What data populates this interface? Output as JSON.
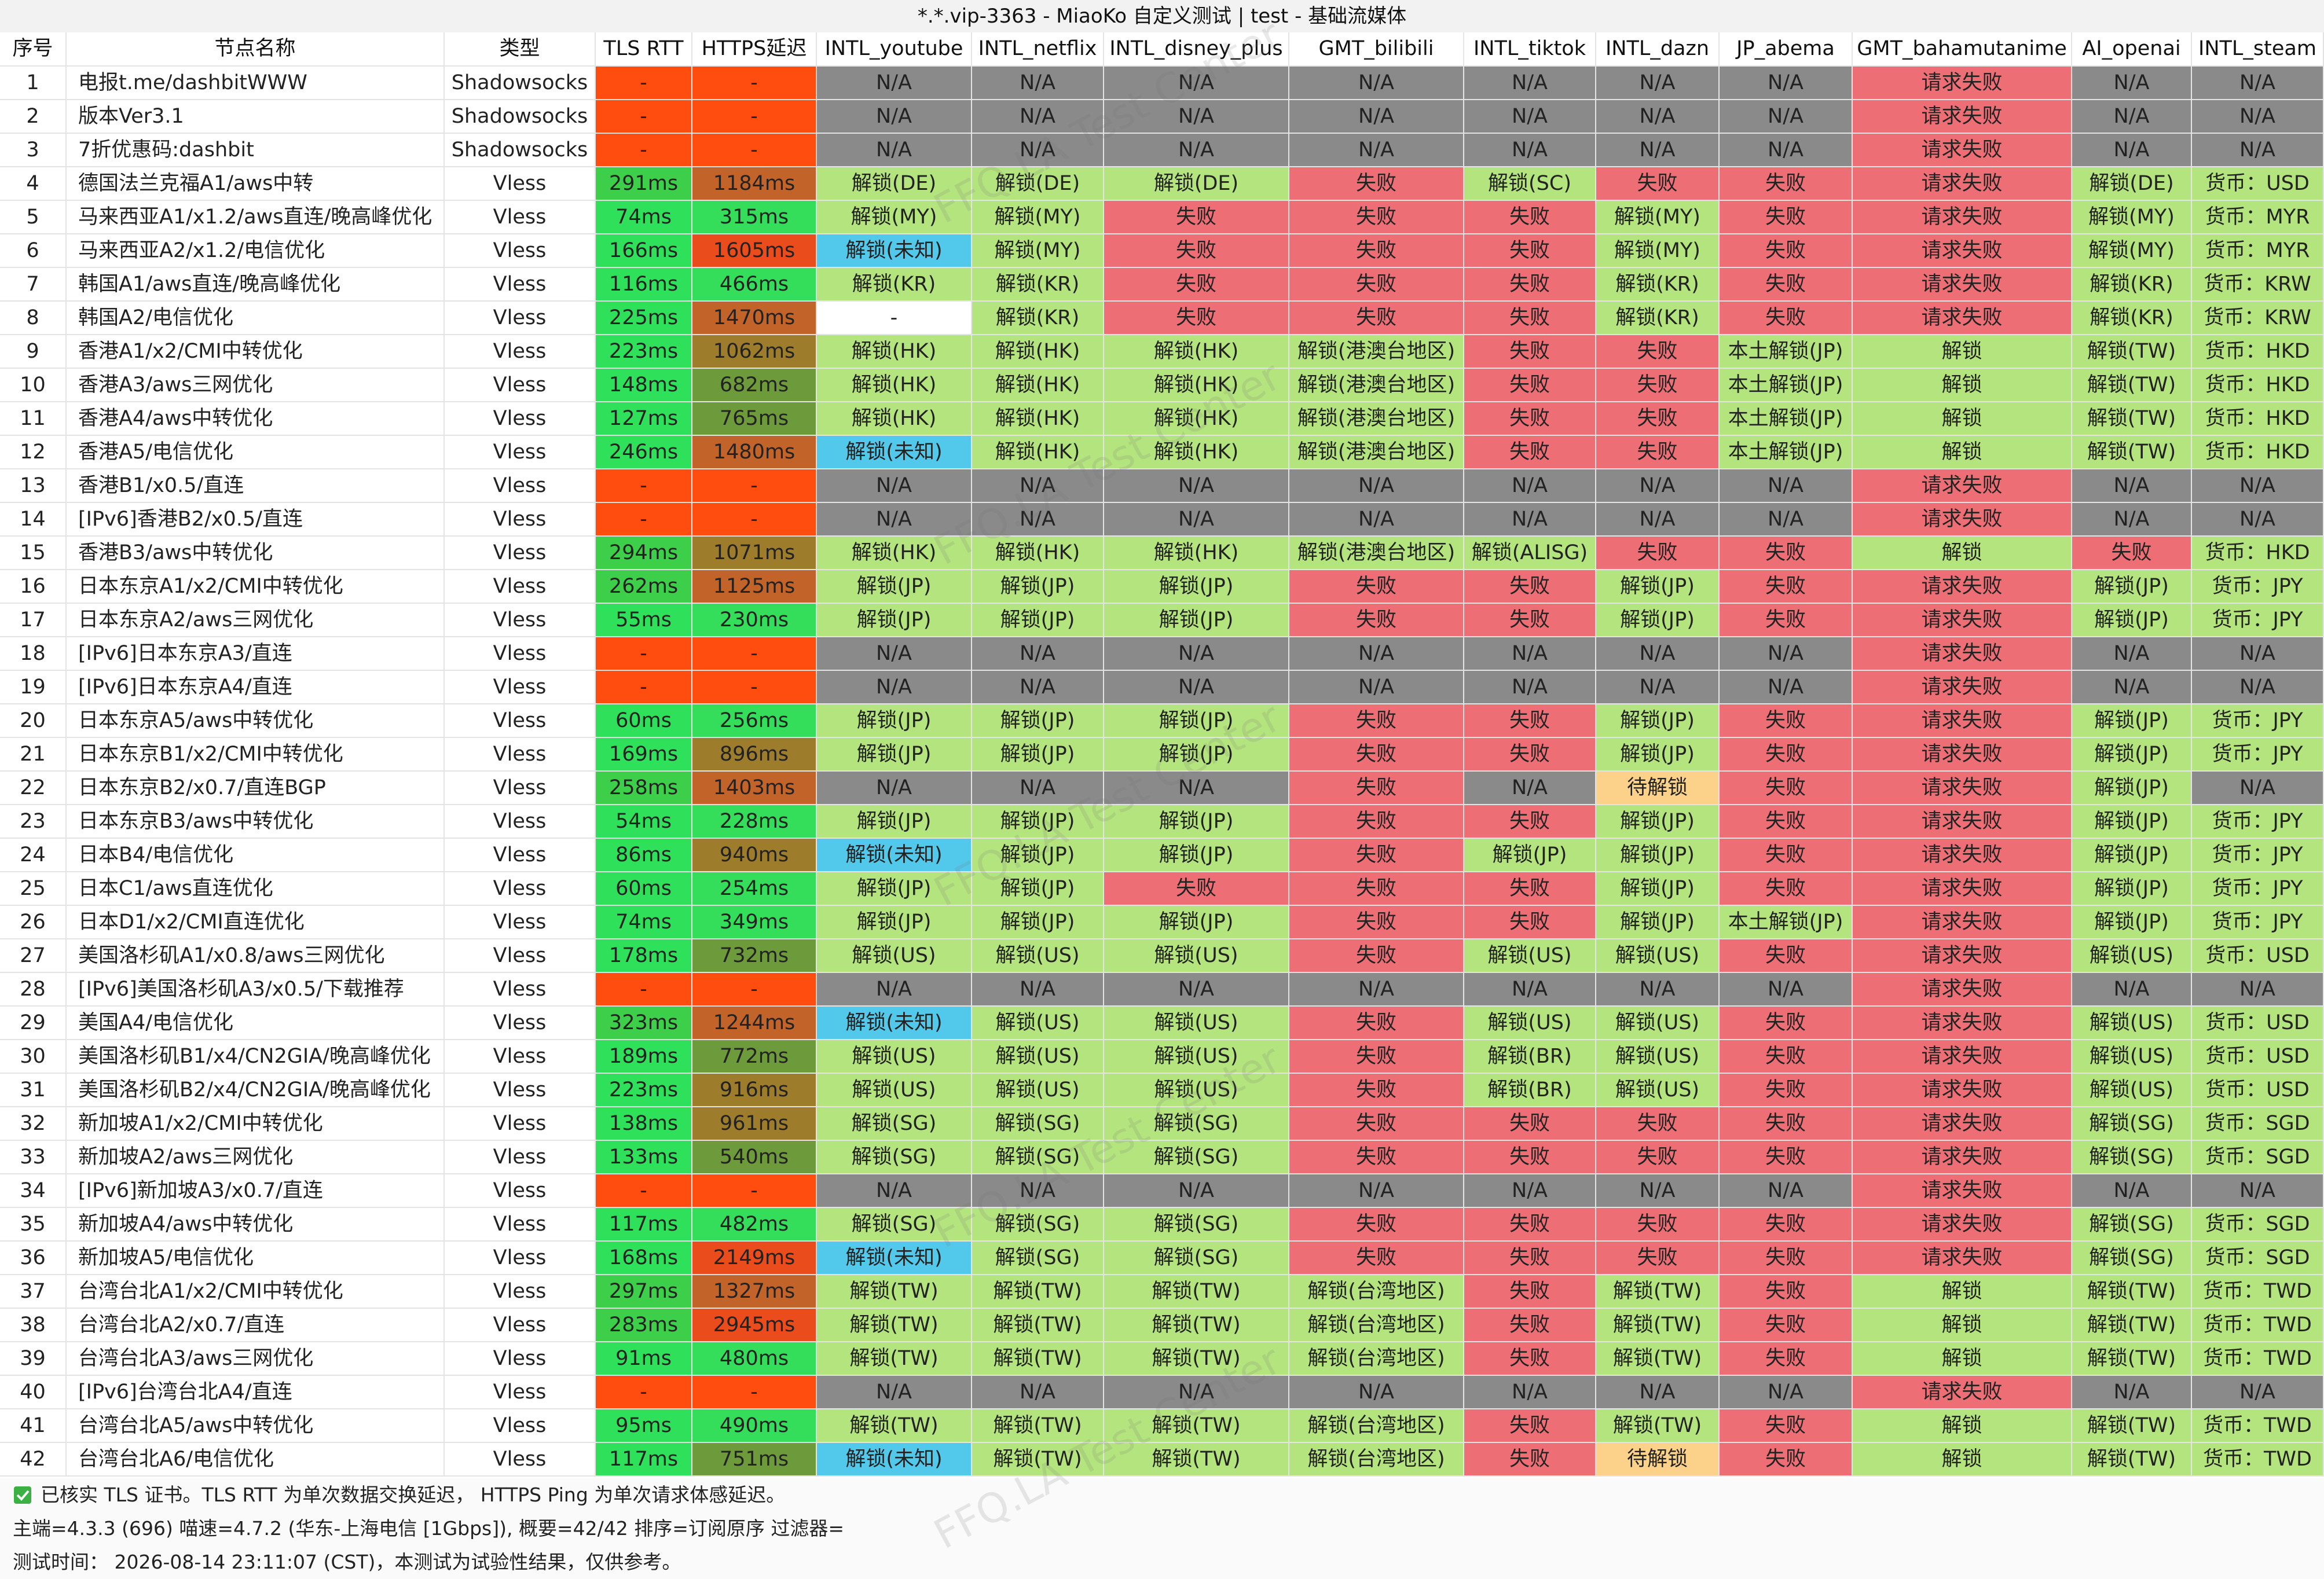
{
  "title": "*.*.vip-3363 - MiaoKo 自定义测试 | test - 基础流媒体",
  "watermark": "FFQ.LA Test Center",
  "table": {
    "header": [
      "序号",
      "节点名称",
      "类型",
      "TLS RTT",
      "HTTPS延迟",
      "INTL_youtube",
      "INTL_netflix",
      "INTL_disney_plus",
      "GMT_bilibili",
      "INTL_tiktok",
      "INTL_dazn",
      "JP_abema",
      "GMT_bahamutanime",
      "AI_openai",
      "INTL_steam"
    ],
    "rows": [
      [
        "1",
        "电报t.me/dashbitWWW",
        "Shadowsocks",
        "-",
        "-",
        "N/A",
        "N/A",
        "N/A",
        "N/A",
        "N/A",
        "N/A",
        "N/A",
        "请求失败",
        "N/A",
        "N/A"
      ],
      [
        "2",
        "版本Ver3.1",
        "Shadowsocks",
        "-",
        "-",
        "N/A",
        "N/A",
        "N/A",
        "N/A",
        "N/A",
        "N/A",
        "N/A",
        "请求失败",
        "N/A",
        "N/A"
      ],
      [
        "3",
        "7折优惠码:dashbit",
        "Shadowsocks",
        "-",
        "-",
        "N/A",
        "N/A",
        "N/A",
        "N/A",
        "N/A",
        "N/A",
        "N/A",
        "请求失败",
        "N/A",
        "N/A"
      ],
      [
        "4",
        "德国法兰克福A1/aws中转",
        "Vless",
        "291ms",
        "1184ms",
        "解锁(DE)",
        "解锁(DE)",
        "解锁(DE)",
        "失败",
        "解锁(SC)",
        "失败",
        "失败",
        "请求失败",
        "解锁(DE)",
        "货币：USD"
      ],
      [
        "5",
        "马来西亚A1/x1.2/aws直连/晚高峰优化",
        "Vless",
        "74ms",
        "315ms",
        "解锁(MY)",
        "解锁(MY)",
        "失败",
        "失败",
        "失败",
        "解锁(MY)",
        "失败",
        "请求失败",
        "解锁(MY)",
        "货币：MYR"
      ],
      [
        "6",
        "马来西亚A2/x1.2/电信优化",
        "Vless",
        "166ms",
        "1605ms",
        "解锁(未知)",
        "解锁(MY)",
        "失败",
        "失败",
        "失败",
        "解锁(MY)",
        "失败",
        "请求失败",
        "解锁(MY)",
        "货币：MYR"
      ],
      [
        "7",
        "韩国A1/aws直连/晚高峰优化",
        "Vless",
        "116ms",
        "466ms",
        "解锁(KR)",
        "解锁(KR)",
        "失败",
        "失败",
        "失败",
        "解锁(KR)",
        "失败",
        "请求失败",
        "解锁(KR)",
        "货币：KRW"
      ],
      [
        "8",
        "韩国A2/电信优化",
        "Vless",
        "225ms",
        "1470ms",
        "-",
        "解锁(KR)",
        "失败",
        "失败",
        "失败",
        "解锁(KR)",
        "失败",
        "请求失败",
        "解锁(KR)",
        "货币：KRW"
      ],
      [
        "9",
        "香港A1/x2/CMI中转优化",
        "Vless",
        "223ms",
        "1062ms",
        "解锁(HK)",
        "解锁(HK)",
        "解锁(HK)",
        "解锁(港澳台地区)",
        "失败",
        "失败",
        "本土解锁(JP)",
        "解锁",
        "解锁(TW)",
        "货币：HKD"
      ],
      [
        "10",
        "香港A3/aws三网优化",
        "Vless",
        "148ms",
        "682ms",
        "解锁(HK)",
        "解锁(HK)",
        "解锁(HK)",
        "解锁(港澳台地区)",
        "失败",
        "失败",
        "本土解锁(JP)",
        "解锁",
        "解锁(TW)",
        "货币：HKD"
      ],
      [
        "11",
        "香港A4/aws中转优化",
        "Vless",
        "127ms",
        "765ms",
        "解锁(HK)",
        "解锁(HK)",
        "解锁(HK)",
        "解锁(港澳台地区)",
        "失败",
        "失败",
        "本土解锁(JP)",
        "解锁",
        "解锁(TW)",
        "货币：HKD"
      ],
      [
        "12",
        "香港A5/电信优化",
        "Vless",
        "246ms",
        "1480ms",
        "解锁(未知)",
        "解锁(HK)",
        "解锁(HK)",
        "解锁(港澳台地区)",
        "失败",
        "失败",
        "本土解锁(JP)",
        "解锁",
        "解锁(TW)",
        "货币：HKD"
      ],
      [
        "13",
        "香港B1/x0.5/直连",
        "Vless",
        "-",
        "-",
        "N/A",
        "N/A",
        "N/A",
        "N/A",
        "N/A",
        "N/A",
        "N/A",
        "请求失败",
        "N/A",
        "N/A"
      ],
      [
        "14",
        "[IPv6]香港B2/x0.5/直连",
        "Vless",
        "-",
        "-",
        "N/A",
        "N/A",
        "N/A",
        "N/A",
        "N/A",
        "N/A",
        "N/A",
        "请求失败",
        "N/A",
        "N/A"
      ],
      [
        "15",
        "香港B3/aws中转优化",
        "Vless",
        "294ms",
        "1071ms",
        "解锁(HK)",
        "解锁(HK)",
        "解锁(HK)",
        "解锁(港澳台地区)",
        "解锁(ALISG)",
        "失败",
        "失败",
        "解锁",
        "失败",
        "货币：HKD"
      ],
      [
        "16",
        "日本东京A1/x2/CMI中转优化",
        "Vless",
        "262ms",
        "1125ms",
        "解锁(JP)",
        "解锁(JP)",
        "解锁(JP)",
        "失败",
        "失败",
        "解锁(JP)",
        "失败",
        "请求失败",
        "解锁(JP)",
        "货币：JPY"
      ],
      [
        "17",
        "日本东京A2/aws三网优化",
        "Vless",
        "55ms",
        "230ms",
        "解锁(JP)",
        "解锁(JP)",
        "解锁(JP)",
        "失败",
        "失败",
        "解锁(JP)",
        "失败",
        "请求失败",
        "解锁(JP)",
        "货币：JPY"
      ],
      [
        "18",
        "[IPv6]日本东京A3/直连",
        "Vless",
        "-",
        "-",
        "N/A",
        "N/A",
        "N/A",
        "N/A",
        "N/A",
        "N/A",
        "N/A",
        "请求失败",
        "N/A",
        "N/A"
      ],
      [
        "19",
        "[IPv6]日本东京A4/直连",
        "Vless",
        "-",
        "-",
        "N/A",
        "N/A",
        "N/A",
        "N/A",
        "N/A",
        "N/A",
        "N/A",
        "请求失败",
        "N/A",
        "N/A"
      ],
      [
        "20",
        "日本东京A5/aws中转优化",
        "Vless",
        "60ms",
        "256ms",
        "解锁(JP)",
        "解锁(JP)",
        "解锁(JP)",
        "失败",
        "失败",
        "解锁(JP)",
        "失败",
        "请求失败",
        "解锁(JP)",
        "货币：JPY"
      ],
      [
        "21",
        "日本东京B1/x2/CMI中转优化",
        "Vless",
        "169ms",
        "896ms",
        "解锁(JP)",
        "解锁(JP)",
        "解锁(JP)",
        "失败",
        "失败",
        "解锁(JP)",
        "失败",
        "请求失败",
        "解锁(JP)",
        "货币：JPY"
      ],
      [
        "22",
        "日本东京B2/x0.7/直连BGP",
        "Vless",
        "258ms",
        "1403ms",
        "N/A",
        "N/A",
        "N/A",
        "失败",
        "N/A",
        "待解锁",
        "失败",
        "请求失败",
        "解锁(JP)",
        "N/A"
      ],
      [
        "23",
        "日本东京B3/aws中转优化",
        "Vless",
        "54ms",
        "228ms",
        "解锁(JP)",
        "解锁(JP)",
        "解锁(JP)",
        "失败",
        "失败",
        "解锁(JP)",
        "失败",
        "请求失败",
        "解锁(JP)",
        "货币：JPY"
      ],
      [
        "24",
        "日本B4/电信优化",
        "Vless",
        "86ms",
        "940ms",
        "解锁(未知)",
        "解锁(JP)",
        "解锁(JP)",
        "失败",
        "解锁(JP)",
        "解锁(JP)",
        "失败",
        "请求失败",
        "解锁(JP)",
        "货币：JPY"
      ],
      [
        "25",
        "日本C1/aws直连优化",
        "Vless",
        "60ms",
        "254ms",
        "解锁(JP)",
        "解锁(JP)",
        "失败",
        "失败",
        "失败",
        "解锁(JP)",
        "失败",
        "请求失败",
        "解锁(JP)",
        "货币：JPY"
      ],
      [
        "26",
        "日本D1/x2/CMI直连优化",
        "Vless",
        "74ms",
        "349ms",
        "解锁(JP)",
        "解锁(JP)",
        "解锁(JP)",
        "失败",
        "失败",
        "解锁(JP)",
        "本土解锁(JP)",
        "请求失败",
        "解锁(JP)",
        "货币：JPY"
      ],
      [
        "27",
        "美国洛杉矶A1/x0.8/aws三网优化",
        "Vless",
        "178ms",
        "732ms",
        "解锁(US)",
        "解锁(US)",
        "解锁(US)",
        "失败",
        "解锁(US)",
        "解锁(US)",
        "失败",
        "请求失败",
        "解锁(US)",
        "货币：USD"
      ],
      [
        "28",
        "[IPv6]美国洛杉矶A3/x0.5/下载推荐",
        "Vless",
        "-",
        "-",
        "N/A",
        "N/A",
        "N/A",
        "N/A",
        "N/A",
        "N/A",
        "N/A",
        "请求失败",
        "N/A",
        "N/A"
      ],
      [
        "29",
        "美国A4/电信优化",
        "Vless",
        "323ms",
        "1244ms",
        "解锁(未知)",
        "解锁(US)",
        "解锁(US)",
        "失败",
        "解锁(US)",
        "解锁(US)",
        "失败",
        "请求失败",
        "解锁(US)",
        "货币：USD"
      ],
      [
        "30",
        "美国洛杉矶B1/x4/CN2GIA/晚高峰优化",
        "Vless",
        "189ms",
        "772ms",
        "解锁(US)",
        "解锁(US)",
        "解锁(US)",
        "失败",
        "解锁(BR)",
        "解锁(US)",
        "失败",
        "请求失败",
        "解锁(US)",
        "货币：USD"
      ],
      [
        "31",
        "美国洛杉矶B2/x4/CN2GIA/晚高峰优化",
        "Vless",
        "223ms",
        "916ms",
        "解锁(US)",
        "解锁(US)",
        "解锁(US)",
        "失败",
        "解锁(BR)",
        "解锁(US)",
        "失败",
        "请求失败",
        "解锁(US)",
        "货币：USD"
      ],
      [
        "32",
        "新加坡A1/x2/CMI中转优化",
        "Vless",
        "138ms",
        "961ms",
        "解锁(SG)",
        "解锁(SG)",
        "解锁(SG)",
        "失败",
        "失败",
        "失败",
        "失败",
        "请求失败",
        "解锁(SG)",
        "货币：SGD"
      ],
      [
        "33",
        "新加坡A2/aws三网优化",
        "Vless",
        "133ms",
        "540ms",
        "解锁(SG)",
        "解锁(SG)",
        "解锁(SG)",
        "失败",
        "失败",
        "失败",
        "失败",
        "请求失败",
        "解锁(SG)",
        "货币：SGD"
      ],
      [
        "34",
        "[IPv6]新加坡A3/x0.7/直连",
        "Vless",
        "-",
        "-",
        "N/A",
        "N/A",
        "N/A",
        "N/A",
        "N/A",
        "N/A",
        "N/A",
        "请求失败",
        "N/A",
        "N/A"
      ],
      [
        "35",
        "新加坡A4/aws中转优化",
        "Vless",
        "117ms",
        "482ms",
        "解锁(SG)",
        "解锁(SG)",
        "解锁(SG)",
        "失败",
        "失败",
        "失败",
        "失败",
        "请求失败",
        "解锁(SG)",
        "货币：SGD"
      ],
      [
        "36",
        "新加坡A5/电信优化",
        "Vless",
        "168ms",
        "2149ms",
        "解锁(未知)",
        "解锁(SG)",
        "解锁(SG)",
        "失败",
        "失败",
        "失败",
        "失败",
        "请求失败",
        "解锁(SG)",
        "货币：SGD"
      ],
      [
        "37",
        "台湾台北A1/x2/CMI中转优化",
        "Vless",
        "297ms",
        "1327ms",
        "解锁(TW)",
        "解锁(TW)",
        "解锁(TW)",
        "解锁(台湾地区)",
        "失败",
        "解锁(TW)",
        "失败",
        "解锁",
        "解锁(TW)",
        "货币：TWD"
      ],
      [
        "38",
        "台湾台北A2/x0.7/直连",
        "Vless",
        "283ms",
        "2945ms",
        "解锁(TW)",
        "解锁(TW)",
        "解锁(TW)",
        "解锁(台湾地区)",
        "失败",
        "解锁(TW)",
        "失败",
        "解锁",
        "解锁(TW)",
        "货币：TWD"
      ],
      [
        "39",
        "台湾台北A3/aws三网优化",
        "Vless",
        "91ms",
        "480ms",
        "解锁(TW)",
        "解锁(TW)",
        "解锁(TW)",
        "解锁(台湾地区)",
        "失败",
        "解锁(TW)",
        "失败",
        "解锁",
        "解锁(TW)",
        "货币：TWD"
      ],
      [
        "40",
        "[IPv6]台湾台北A4/直连",
        "Vless",
        "-",
        "-",
        "N/A",
        "N/A",
        "N/A",
        "N/A",
        "N/A",
        "N/A",
        "N/A",
        "请求失败",
        "N/A",
        "N/A"
      ],
      [
        "41",
        "台湾台北A5/aws中转优化",
        "Vless",
        "95ms",
        "490ms",
        "解锁(TW)",
        "解锁(TW)",
        "解锁(TW)",
        "解锁(台湾地区)",
        "失败",
        "解锁(TW)",
        "失败",
        "解锁",
        "解锁(TW)",
        "货币：TWD"
      ],
      [
        "42",
        "台湾台北A6/电信优化",
        "Vless",
        "117ms",
        "751ms",
        "解锁(未知)",
        "解锁(TW)",
        "解锁(TW)",
        "解锁(台湾地区)",
        "失败",
        "待解锁",
        "失败",
        "解锁",
        "解锁(TW)",
        "货币：TWD"
      ]
    ]
  },
  "footer": [
    "已核实 TLS 证书。TLS RTT 为单次数据交换延迟， HTTPS Ping 为单次请求体感延迟。",
    "主端=4.3.3 (696) 喵速=4.7.2 (华东-上海电信 [1Gbps]), 概要=42/42 排序=订阅原序 过滤器=",
    "测试时间： 2026-08-14 23:11:07 (CST)，本测试为试验性结果，仅供参考。"
  ]
}
